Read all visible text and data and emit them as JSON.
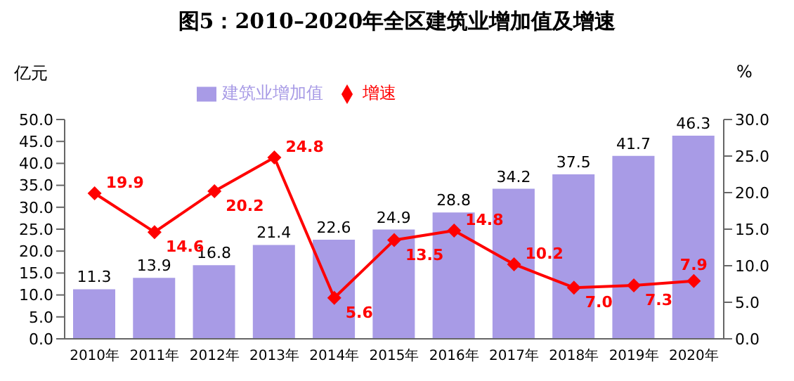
{
  "chart_data": {
    "type": "bar",
    "title": "图5：2010–2020年全区建筑业增加值及增速",
    "ylabel": "亿元",
    "y2label": "%",
    "categories": [
      "2010年",
      "2011年",
      "2012年",
      "2013年",
      "2014年",
      "2015年",
      "2016年",
      "2017年",
      "2018年",
      "2019年",
      "2020年"
    ],
    "series": [
      {
        "name": "建筑业增加值",
        "color": "#a89be6",
        "values": [
          11.3,
          13.9,
          16.8,
          21.4,
          22.6,
          24.9,
          28.8,
          34.2,
          37.5,
          41.7,
          46.3
        ],
        "value_labels": [
          "11.3",
          "13.9",
          "16.8",
          "21.4",
          "22.6",
          "24.9",
          "28.8",
          "34.2",
          "37.5",
          "41.7",
          "46.3"
        ]
      },
      {
        "name": "增速",
        "type": "line",
        "axis": "y2",
        "color": "#ff0000",
        "marker": "diamond",
        "values": [
          19.9,
          14.6,
          20.2,
          24.8,
          5.6,
          13.5,
          14.8,
          10.2,
          7.0,
          7.3,
          7.9
        ],
        "value_labels": [
          "19.9",
          "14.6",
          "20.2",
          "24.8",
          "5.6",
          "13.5",
          "14.8",
          "10.2",
          "7.0",
          "7.3",
          "7.9"
        ]
      }
    ],
    "ylim": [
      0,
      50
    ],
    "yticks": [
      {
        "value": 0,
        "label": "0.0"
      },
      {
        "value": 5,
        "label": "5.0"
      },
      {
        "value": 10,
        "label": "10.0"
      },
      {
        "value": 15,
        "label": "15.0"
      },
      {
        "value": 20,
        "label": "20.0"
      },
      {
        "value": 25,
        "label": "25.0"
      },
      {
        "value": 30,
        "label": "30.0"
      },
      {
        "value": 35,
        "label": "35.0"
      },
      {
        "value": 40,
        "label": "40.0"
      },
      {
        "value": 45,
        "label": "45.0"
      },
      {
        "value": 50,
        "label": "50.0"
      }
    ],
    "y2lim": [
      0,
      30
    ],
    "y2ticks": [
      {
        "value": 0,
        "label": "0.0"
      },
      {
        "value": 5,
        "label": "5.0"
      },
      {
        "value": 10,
        "label": "10.0"
      },
      {
        "value": 15,
        "label": "15.0"
      },
      {
        "value": 20,
        "label": "20.0"
      },
      {
        "value": 25,
        "label": "25.0"
      },
      {
        "value": 30,
        "label": "30.0"
      }
    ],
    "legend": "top left",
    "grid": false
  }
}
